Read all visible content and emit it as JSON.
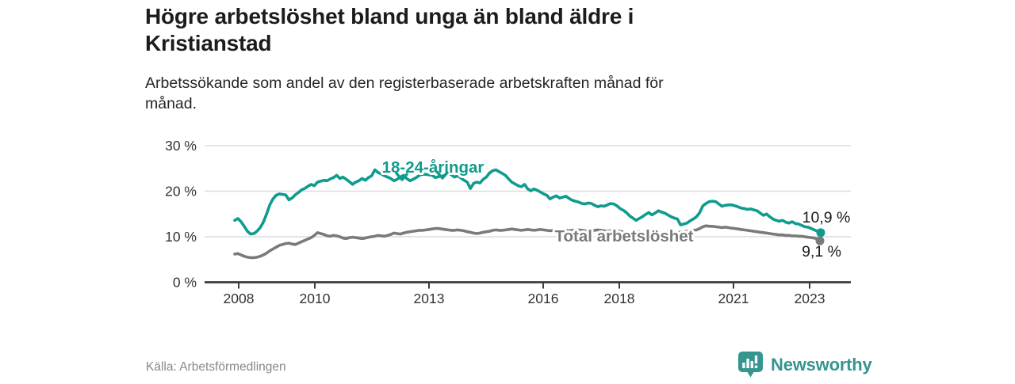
{
  "header": {
    "title_lines": [
      "Högre arbetslöshet bland unga än bland äldre i",
      "Kristianstad"
    ],
    "subtitle_lines": [
      "Arbetssökande som andel av den registerbaserade arbetskraften månad för",
      "månad."
    ]
  },
  "footer": {
    "source": "Källa: Arbetsförmedlingen",
    "logo_icon": "bar-chart-speech-bubble-icon",
    "logo_text": "Newsworthy"
  },
  "colors": {
    "youth_line": "#0f9b8d",
    "total_line": "#7a7a7a",
    "value_label": "#1a1a1a",
    "axis": "#3c3c3c",
    "grid": "#dcdcdc",
    "tick_label": "#333333",
    "source_text": "#85898c",
    "brand": "#35968f",
    "background": "#ffffff"
  },
  "chart_data": {
    "type": "line",
    "x_start": "2008-01",
    "x_end": "2023-05",
    "x_frequency": "monthly",
    "x_tick_years": [
      2008,
      2010,
      2013,
      2016,
      2018,
      2021,
      2023
    ],
    "y_tick_values": [
      0,
      10,
      20,
      30
    ],
    "y_tick_labels": [
      "0 %",
      "10 %",
      "20 %",
      "30 %"
    ],
    "ylim": [
      0,
      32
    ],
    "grid": "horizontal-only",
    "legend": "inline-labels",
    "series": [
      {
        "name": "18-24-åringar",
        "end_label": "10,9 %",
        "end_value": 10.9,
        "values": [
          13.6,
          14.0,
          13.3,
          12.3,
          11.2,
          10.6,
          10.7,
          11.2,
          12.0,
          13.2,
          15.0,
          17.0,
          18.3,
          19.1,
          19.4,
          19.3,
          19.2,
          18.1,
          18.5,
          19.2,
          19.7,
          20.3,
          20.6,
          21.1,
          21.5,
          21.2,
          22.0,
          22.2,
          22.4,
          22.3,
          22.7,
          23.0,
          23.5,
          22.8,
          23.1,
          22.6,
          22.1,
          21.5,
          22.0,
          22.3,
          22.8,
          22.4,
          23.0,
          23.4,
          24.7,
          24.1,
          23.8,
          23.4,
          23.1,
          22.8,
          22.3,
          22.6,
          23.1,
          23.5,
          22.8,
          22.3,
          22.6,
          23.0,
          23.5,
          23.7,
          23.7,
          23.6,
          23.5,
          23.0,
          23.2,
          23.4,
          23.6,
          24.2,
          23.6,
          23.1,
          23.4,
          22.9,
          22.4,
          22.0,
          20.6,
          21.7,
          22.0,
          21.8,
          22.6,
          23.1,
          24.0,
          24.5,
          24.7,
          24.3,
          23.9,
          23.5,
          22.7,
          22.0,
          21.6,
          21.2,
          21.0,
          21.5,
          20.5,
          20.1,
          20.5,
          20.2,
          19.8,
          19.4,
          19.1,
          18.3,
          18.7,
          19.0,
          18.5,
          18.7,
          18.9,
          18.4,
          18.0,
          17.8,
          17.6,
          17.3,
          17.2,
          17.4,
          17.3,
          16.9,
          16.6,
          16.8,
          16.7,
          17.0,
          17.3,
          17.2,
          16.8,
          16.2,
          15.8,
          15.3,
          14.6,
          14.1,
          13.6,
          14.0,
          14.4,
          14.9,
          15.3,
          14.8,
          15.2,
          15.7,
          15.4,
          15.2,
          14.8,
          14.4,
          14.1,
          13.9,
          12.6,
          12.8,
          13.0,
          13.5,
          13.9,
          14.4,
          15.3,
          16.8,
          17.3,
          17.7,
          17.8,
          17.7,
          17.2,
          16.7,
          16.9,
          17.0,
          17.0,
          16.8,
          16.6,
          16.3,
          16.2,
          16.0,
          16.1,
          15.9,
          15.7,
          15.2,
          14.7,
          15.0,
          14.4,
          13.9,
          13.6,
          13.4,
          13.6,
          13.2,
          13.0,
          13.3,
          12.9,
          12.8,
          12.5,
          12.2,
          12.1,
          11.8,
          11.5,
          11.2,
          10.9
        ]
      },
      {
        "name": "Total arbetslöshet",
        "end_label": "9,1 %",
        "end_value": 9.1,
        "values": [
          6.2,
          6.3,
          6.0,
          5.7,
          5.5,
          5.4,
          5.4,
          5.5,
          5.7,
          6.0,
          6.4,
          6.9,
          7.3,
          7.7,
          8.1,
          8.3,
          8.5,
          8.6,
          8.4,
          8.3,
          8.6,
          8.9,
          9.2,
          9.5,
          9.8,
          10.3,
          10.9,
          10.7,
          10.5,
          10.2,
          10.1,
          10.3,
          10.2,
          10.0,
          9.7,
          9.6,
          9.8,
          9.9,
          9.8,
          9.7,
          9.6,
          9.7,
          9.9,
          10.0,
          10.1,
          10.3,
          10.2,
          10.1,
          10.3,
          10.5,
          10.8,
          10.7,
          10.6,
          10.8,
          11.0,
          11.1,
          11.2,
          11.3,
          11.4,
          11.4,
          11.5,
          11.6,
          11.7,
          11.8,
          11.8,
          11.7,
          11.6,
          11.5,
          11.4,
          11.4,
          11.5,
          11.4,
          11.3,
          11.1,
          11.0,
          10.8,
          10.7,
          10.8,
          11.0,
          11.1,
          11.2,
          11.4,
          11.5,
          11.4,
          11.4,
          11.5,
          11.6,
          11.7,
          11.6,
          11.5,
          11.4,
          11.5,
          11.6,
          11.5,
          11.4,
          11.5,
          11.6,
          11.5,
          11.4,
          11.3,
          11.4,
          11.5,
          11.6,
          11.5,
          11.4,
          11.3,
          11.4,
          11.5,
          11.5,
          11.4,
          11.3,
          11.2,
          11.3,
          11.4,
          11.5,
          11.4,
          11.3,
          11.2,
          11.3,
          11.4,
          11.3,
          11.2,
          11.0,
          10.9,
          10.8,
          10.9,
          11.0,
          11.1,
          11.0,
          10.9,
          11.0,
          11.1,
          11.0,
          10.9,
          10.8,
          10.9,
          11.0,
          11.1,
          11.0,
          10.9,
          11.0,
          11.1,
          11.2,
          11.3,
          11.4,
          11.5,
          11.8,
          12.2,
          12.4,
          12.3,
          12.3,
          12.2,
          12.1,
          12.0,
          12.1,
          12.0,
          11.9,
          11.8,
          11.7,
          11.6,
          11.5,
          11.4,
          11.3,
          11.2,
          11.1,
          11.0,
          10.9,
          10.8,
          10.7,
          10.6,
          10.5,
          10.4,
          10.4,
          10.3,
          10.3,
          10.2,
          10.2,
          10.1,
          10.1,
          10.0,
          9.9,
          9.8,
          9.7,
          9.5,
          9.1
        ]
      }
    ]
  }
}
